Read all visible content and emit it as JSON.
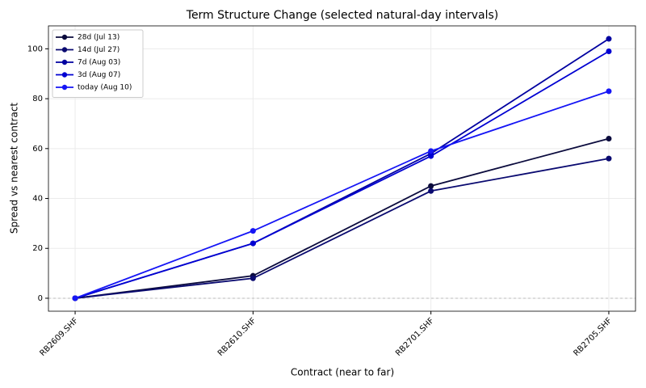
{
  "chart_data": {
    "type": "line",
    "title": "Term Structure Change (selected natural-day intervals)",
    "x_label": "Contract (near to far)",
    "y_label": "Spread vs nearest contract",
    "categories": [
      "RB2609.SHF",
      "RB2610.SHF",
      "RB2701.SHF",
      "RB2705.SHF"
    ],
    "series": [
      {
        "name": "28d (Jul 13)",
        "color": "#0b0b3d",
        "values": [
          0,
          9,
          45,
          64
        ]
      },
      {
        "name": "14d (Jul 27)",
        "color": "#0a0a70",
        "values": [
          0,
          8,
          43,
          56
        ]
      },
      {
        "name": "7d (Aug 03)",
        "color": "#0000a0",
        "values": [
          0,
          22,
          58,
          104
        ]
      },
      {
        "name": "3d (Aug 07)",
        "color": "#0000d2",
        "values": [
          0,
          22,
          57,
          99
        ]
      },
      {
        "name": "today (Aug 10)",
        "color": "#1515f5",
        "values": [
          0,
          27,
          59,
          83
        ]
      }
    ],
    "ylim": [
      -5.2,
      109.2
    ],
    "yticks": [
      0,
      20,
      40,
      60,
      80,
      100
    ],
    "grid": true,
    "zero_line": true,
    "legend": "upper left"
  }
}
